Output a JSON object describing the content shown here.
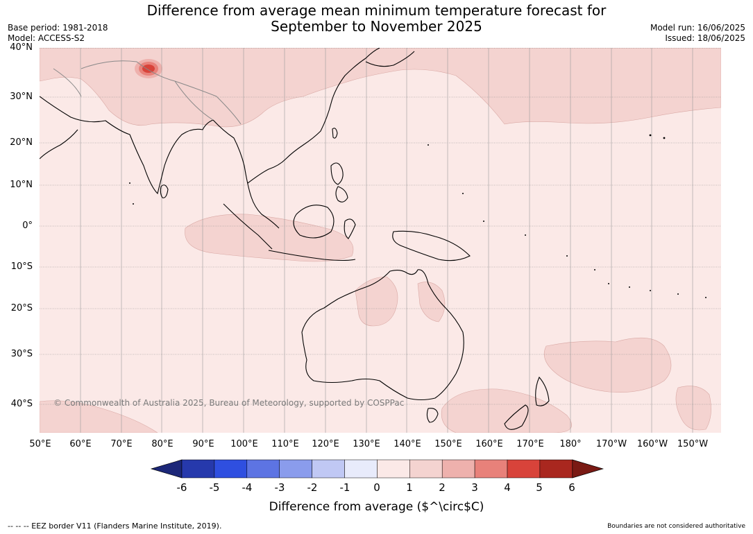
{
  "title": {
    "line1": "Difference from average mean minimum temperature forecast for",
    "line2": "September to November 2025"
  },
  "meta_left": {
    "base_period": "Base period: 1981-2018",
    "model": "Model: ACCESS-S2"
  },
  "meta_right": {
    "model_run": "Model run: 16/06/2025",
    "issued": "Issued: 18/06/2025"
  },
  "map": {
    "lat_labels": [
      "40°N",
      "30°N",
      "20°N",
      "10°N",
      "0°",
      "10°S",
      "20°S",
      "30°S",
      "40°S"
    ],
    "lon_labels": [
      "50°E",
      "60°E",
      "70°E",
      "80°E",
      "90°E",
      "100°E",
      "110°E",
      "120°E",
      "130°E",
      "140°E",
      "150°E",
      "160°E",
      "170°E",
      "180°",
      "170°W",
      "160°W",
      "150°W"
    ],
    "copyright": "© Commonwealth of Australia 2025, Bureau of Meteorology, supported by COSPPac",
    "colors": {
      "water": "#fbe9e7",
      "ocean_warm": "#f4d3d0",
      "hotspot": "#d8433a",
      "coast": "#000000",
      "border": "#888888"
    }
  },
  "colorbar": {
    "ticks": [
      "-6",
      "-5",
      "-4",
      "-3",
      "-2",
      "-1",
      "0",
      "1",
      "2",
      "3",
      "4",
      "5",
      "6"
    ],
    "label": "Difference from average ($^\\circ$C)",
    "colors": [
      "#1c2778",
      "#2639ac",
      "#2f4fe0",
      "#5d74e3",
      "#8a9cec",
      "#c0c8f4",
      "#e8ebfb",
      "#fbe9e7",
      "#f4d3d0",
      "#eeb1ad",
      "#e8817a",
      "#d8433a",
      "#a9271f",
      "#7a1a14"
    ]
  },
  "footer": {
    "eez": "--  --  -- EEZ border V11 (Flanders Marine Institute, 2019).",
    "disclaimer": "Boundaries are not considered authoritative"
  }
}
